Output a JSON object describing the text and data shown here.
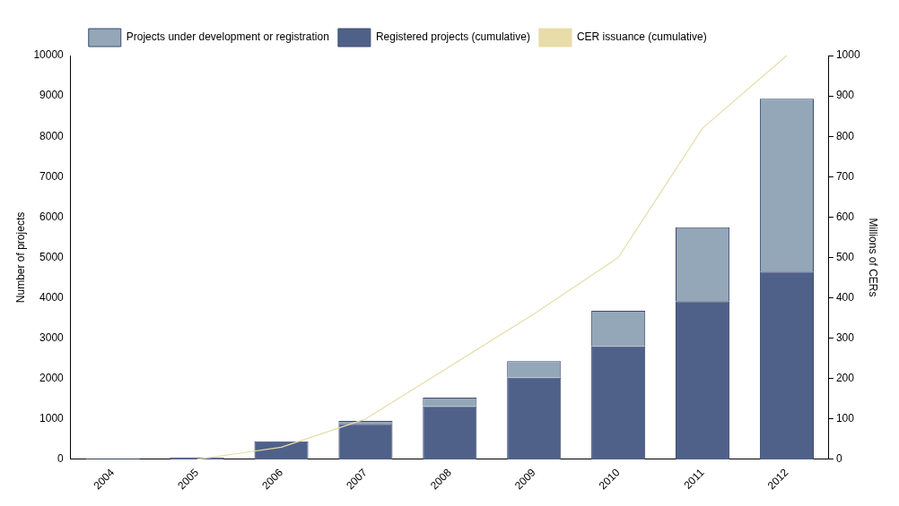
{
  "chart_data": {
    "type": "bar",
    "stacked": true,
    "categories": [
      "2004",
      "2005",
      "2006",
      "2007",
      "2008",
      "2009",
      "2010",
      "2011",
      "2012"
    ],
    "series": [
      {
        "name": "Registered projects (cumulative)",
        "color": "#4f6189",
        "values": [
          20,
          50,
          450,
          880,
          1320,
          2020,
          2800,
          3920,
          4650
        ]
      },
      {
        "name": "Projects under development or registration",
        "color": "#94a7b8",
        "values": [
          0,
          0,
          0,
          70,
          210,
          410,
          880,
          1830,
          4280
        ]
      },
      {
        "name": "CER issuance (cumulative)",
        "type": "line",
        "axis": "y2",
        "color": "#e8dca8",
        "values": [
          null,
          0,
          30,
          100,
          230,
          360,
          500,
          820,
          1000
        ]
      }
    ],
    "ylabel": "Number of projects",
    "y2label": "Millions of CERs",
    "ylim": [
      0,
      10000
    ],
    "yticks": [
      0,
      1000,
      2000,
      3000,
      4000,
      5000,
      6000,
      7000,
      8000,
      9000,
      10000
    ],
    "y2lim": [
      0,
      1000
    ],
    "y2ticks": [
      0,
      100,
      200,
      300,
      400,
      500,
      600,
      700,
      800,
      900,
      1000
    ],
    "legend": "top left",
    "grid": false
  }
}
